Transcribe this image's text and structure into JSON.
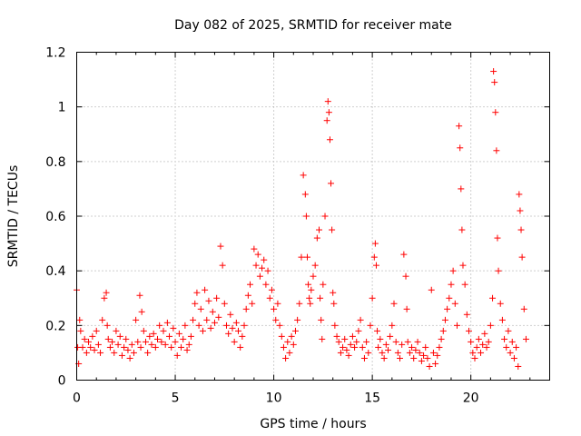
{
  "chart_data": {
    "type": "scatter",
    "title": "Day 082 of 2025, SRMTID for receiver mate",
    "xlabel": "GPS time / hours",
    "ylabel": "SRMTID / TECUs",
    "xlim": [
      0,
      24
    ],
    "ylim": [
      0,
      1.2
    ],
    "xticks": [
      "0",
      "5",
      "10",
      "15",
      "20"
    ],
    "xtick_values": [
      0,
      5,
      10,
      15,
      20
    ],
    "yticks": [
      "0",
      "0.2",
      "0.4",
      "0.6",
      "0.8",
      "1",
      "1.2"
    ],
    "ytick_values": [
      0,
      0.2,
      0.4,
      0.6,
      0.8,
      1.0,
      1.2
    ],
    "grid": true,
    "marker": "+",
    "color": "#ff0000",
    "series": [
      {
        "name": "SRMTID",
        "x": [
          0.0,
          0.05,
          0.1,
          0.15,
          0.2,
          0.3,
          0.4,
          0.5,
          0.6,
          0.7,
          0.8,
          0.9,
          1.0,
          1.1,
          1.2,
          1.3,
          1.4,
          1.5,
          1.55,
          1.6,
          1.7,
          1.8,
          1.9,
          2.0,
          2.1,
          2.2,
          2.3,
          2.4,
          2.5,
          2.6,
          2.7,
          2.8,
          2.9,
          3.0,
          3.1,
          3.2,
          3.25,
          3.3,
          3.4,
          3.5,
          3.6,
          3.7,
          3.8,
          3.9,
          4.0,
          4.1,
          4.2,
          4.3,
          4.4,
          4.5,
          4.6,
          4.7,
          4.8,
          4.9,
          5.0,
          5.1,
          5.2,
          5.3,
          5.4,
          5.5,
          5.6,
          5.7,
          5.8,
          5.9,
          6.0,
          6.1,
          6.2,
          6.3,
          6.4,
          6.5,
          6.6,
          6.7,
          6.8,
          6.9,
          7.0,
          7.1,
          7.2,
          7.3,
          7.4,
          7.5,
          7.6,
          7.7,
          7.8,
          7.9,
          8.0,
          8.1,
          8.2,
          8.3,
          8.4,
          8.5,
          8.6,
          8.7,
          8.8,
          8.9,
          9.0,
          9.1,
          9.2,
          9.3,
          9.4,
          9.5,
          9.6,
          9.7,
          9.8,
          9.9,
          10.0,
          10.1,
          10.2,
          10.3,
          10.4,
          10.5,
          10.6,
          10.7,
          10.8,
          10.9,
          11.0,
          11.1,
          11.2,
          11.3,
          11.4,
          11.5,
          11.6,
          11.65,
          11.7,
          11.75,
          11.8,
          11.85,
          11.9,
          12.0,
          12.1,
          12.2,
          12.3,
          12.35,
          12.4,
          12.45,
          12.5,
          12.6,
          12.7,
          12.75,
          12.8,
          12.85,
          12.9,
          12.95,
          13.0,
          13.05,
          13.1,
          13.2,
          13.3,
          13.4,
          13.5,
          13.6,
          13.7,
          13.8,
          13.9,
          14.0,
          14.1,
          14.2,
          14.3,
          14.4,
          14.5,
          14.6,
          14.7,
          14.8,
          14.9,
          15.0,
          15.1,
          15.15,
          15.2,
          15.25,
          15.3,
          15.4,
          15.5,
          15.6,
          15.7,
          15.8,
          15.9,
          16.0,
          16.1,
          16.2,
          16.3,
          16.4,
          16.5,
          16.6,
          16.7,
          16.75,
          16.8,
          16.9,
          17.0,
          17.1,
          17.2,
          17.3,
          17.4,
          17.5,
          17.6,
          17.7,
          17.8,
          17.9,
          18.0,
          18.1,
          18.2,
          18.3,
          18.4,
          18.5,
          18.6,
          18.7,
          18.8,
          18.9,
          19.0,
          19.1,
          19.2,
          19.3,
          19.4,
          19.45,
          19.5,
          19.55,
          19.6,
          19.7,
          19.8,
          19.9,
          20.0,
          20.1,
          20.2,
          20.3,
          20.4,
          20.5,
          20.6,
          20.7,
          20.8,
          20.9,
          21.0,
          21.1,
          21.15,
          21.2,
          21.25,
          21.3,
          21.35,
          21.4,
          21.5,
          21.6,
          21.7,
          21.8,
          21.9,
          22.0,
          22.1,
          22.2,
          22.3,
          22.4,
          22.45,
          22.5,
          22.55,
          22.6,
          22.7,
          22.8
        ],
        "y": [
          0.33,
          0.12,
          0.06,
          0.22,
          0.18,
          0.12,
          0.15,
          0.1,
          0.14,
          0.12,
          0.16,
          0.11,
          0.18,
          0.13,
          0.1,
          0.22,
          0.3,
          0.32,
          0.2,
          0.15,
          0.12,
          0.14,
          0.1,
          0.18,
          0.13,
          0.16,
          0.09,
          0.12,
          0.15,
          0.11,
          0.08,
          0.13,
          0.1,
          0.22,
          0.14,
          0.31,
          0.12,
          0.25,
          0.18,
          0.14,
          0.1,
          0.16,
          0.13,
          0.17,
          0.12,
          0.15,
          0.2,
          0.14,
          0.18,
          0.13,
          0.21,
          0.16,
          0.12,
          0.19,
          0.14,
          0.09,
          0.17,
          0.12,
          0.15,
          0.2,
          0.11,
          0.13,
          0.16,
          0.22,
          0.28,
          0.32,
          0.2,
          0.26,
          0.18,
          0.33,
          0.22,
          0.29,
          0.19,
          0.25,
          0.21,
          0.3,
          0.23,
          0.49,
          0.42,
          0.28,
          0.2,
          0.17,
          0.24,
          0.19,
          0.14,
          0.21,
          0.18,
          0.12,
          0.16,
          0.2,
          0.26,
          0.31,
          0.35,
          0.28,
          0.48,
          0.42,
          0.46,
          0.38,
          0.41,
          0.44,
          0.35,
          0.4,
          0.3,
          0.33,
          0.26,
          0.22,
          0.28,
          0.2,
          0.16,
          0.12,
          0.08,
          0.14,
          0.1,
          0.16,
          0.13,
          0.18,
          0.22,
          0.28,
          0.45,
          0.75,
          0.68,
          0.6,
          0.45,
          0.35,
          0.3,
          0.28,
          0.33,
          0.38,
          0.42,
          0.52,
          0.55,
          0.3,
          0.22,
          0.15,
          0.35,
          0.6,
          0.95,
          1.02,
          0.98,
          0.88,
          0.72,
          0.55,
          0.32,
          0.28,
          0.2,
          0.16,
          0.14,
          0.1,
          0.12,
          0.15,
          0.11,
          0.09,
          0.13,
          0.16,
          0.12,
          0.14,
          0.18,
          0.22,
          0.12,
          0.08,
          0.14,
          0.1,
          0.2,
          0.3,
          0.45,
          0.5,
          0.42,
          0.18,
          0.12,
          0.15,
          0.1,
          0.08,
          0.13,
          0.11,
          0.16,
          0.2,
          0.28,
          0.14,
          0.1,
          0.08,
          0.13,
          0.46,
          0.38,
          0.26,
          0.14,
          0.1,
          0.12,
          0.08,
          0.11,
          0.14,
          0.1,
          0.07,
          0.09,
          0.12,
          0.08,
          0.05,
          0.33,
          0.1,
          0.06,
          0.09,
          0.12,
          0.15,
          0.18,
          0.22,
          0.26,
          0.3,
          0.35,
          0.4,
          0.28,
          0.2,
          0.93,
          0.85,
          0.7,
          0.55,
          0.42,
          0.35,
          0.24,
          0.18,
          0.14,
          0.1,
          0.08,
          0.12,
          0.15,
          0.1,
          0.13,
          0.17,
          0.12,
          0.14,
          0.2,
          0.3,
          1.13,
          1.09,
          0.98,
          0.84,
          0.52,
          0.4,
          0.28,
          0.22,
          0.15,
          0.12,
          0.18,
          0.1,
          0.14,
          0.08,
          0.12,
          0.05,
          0.68,
          0.62,
          0.55,
          0.45,
          0.26,
          0.15
        ]
      }
    ]
  }
}
